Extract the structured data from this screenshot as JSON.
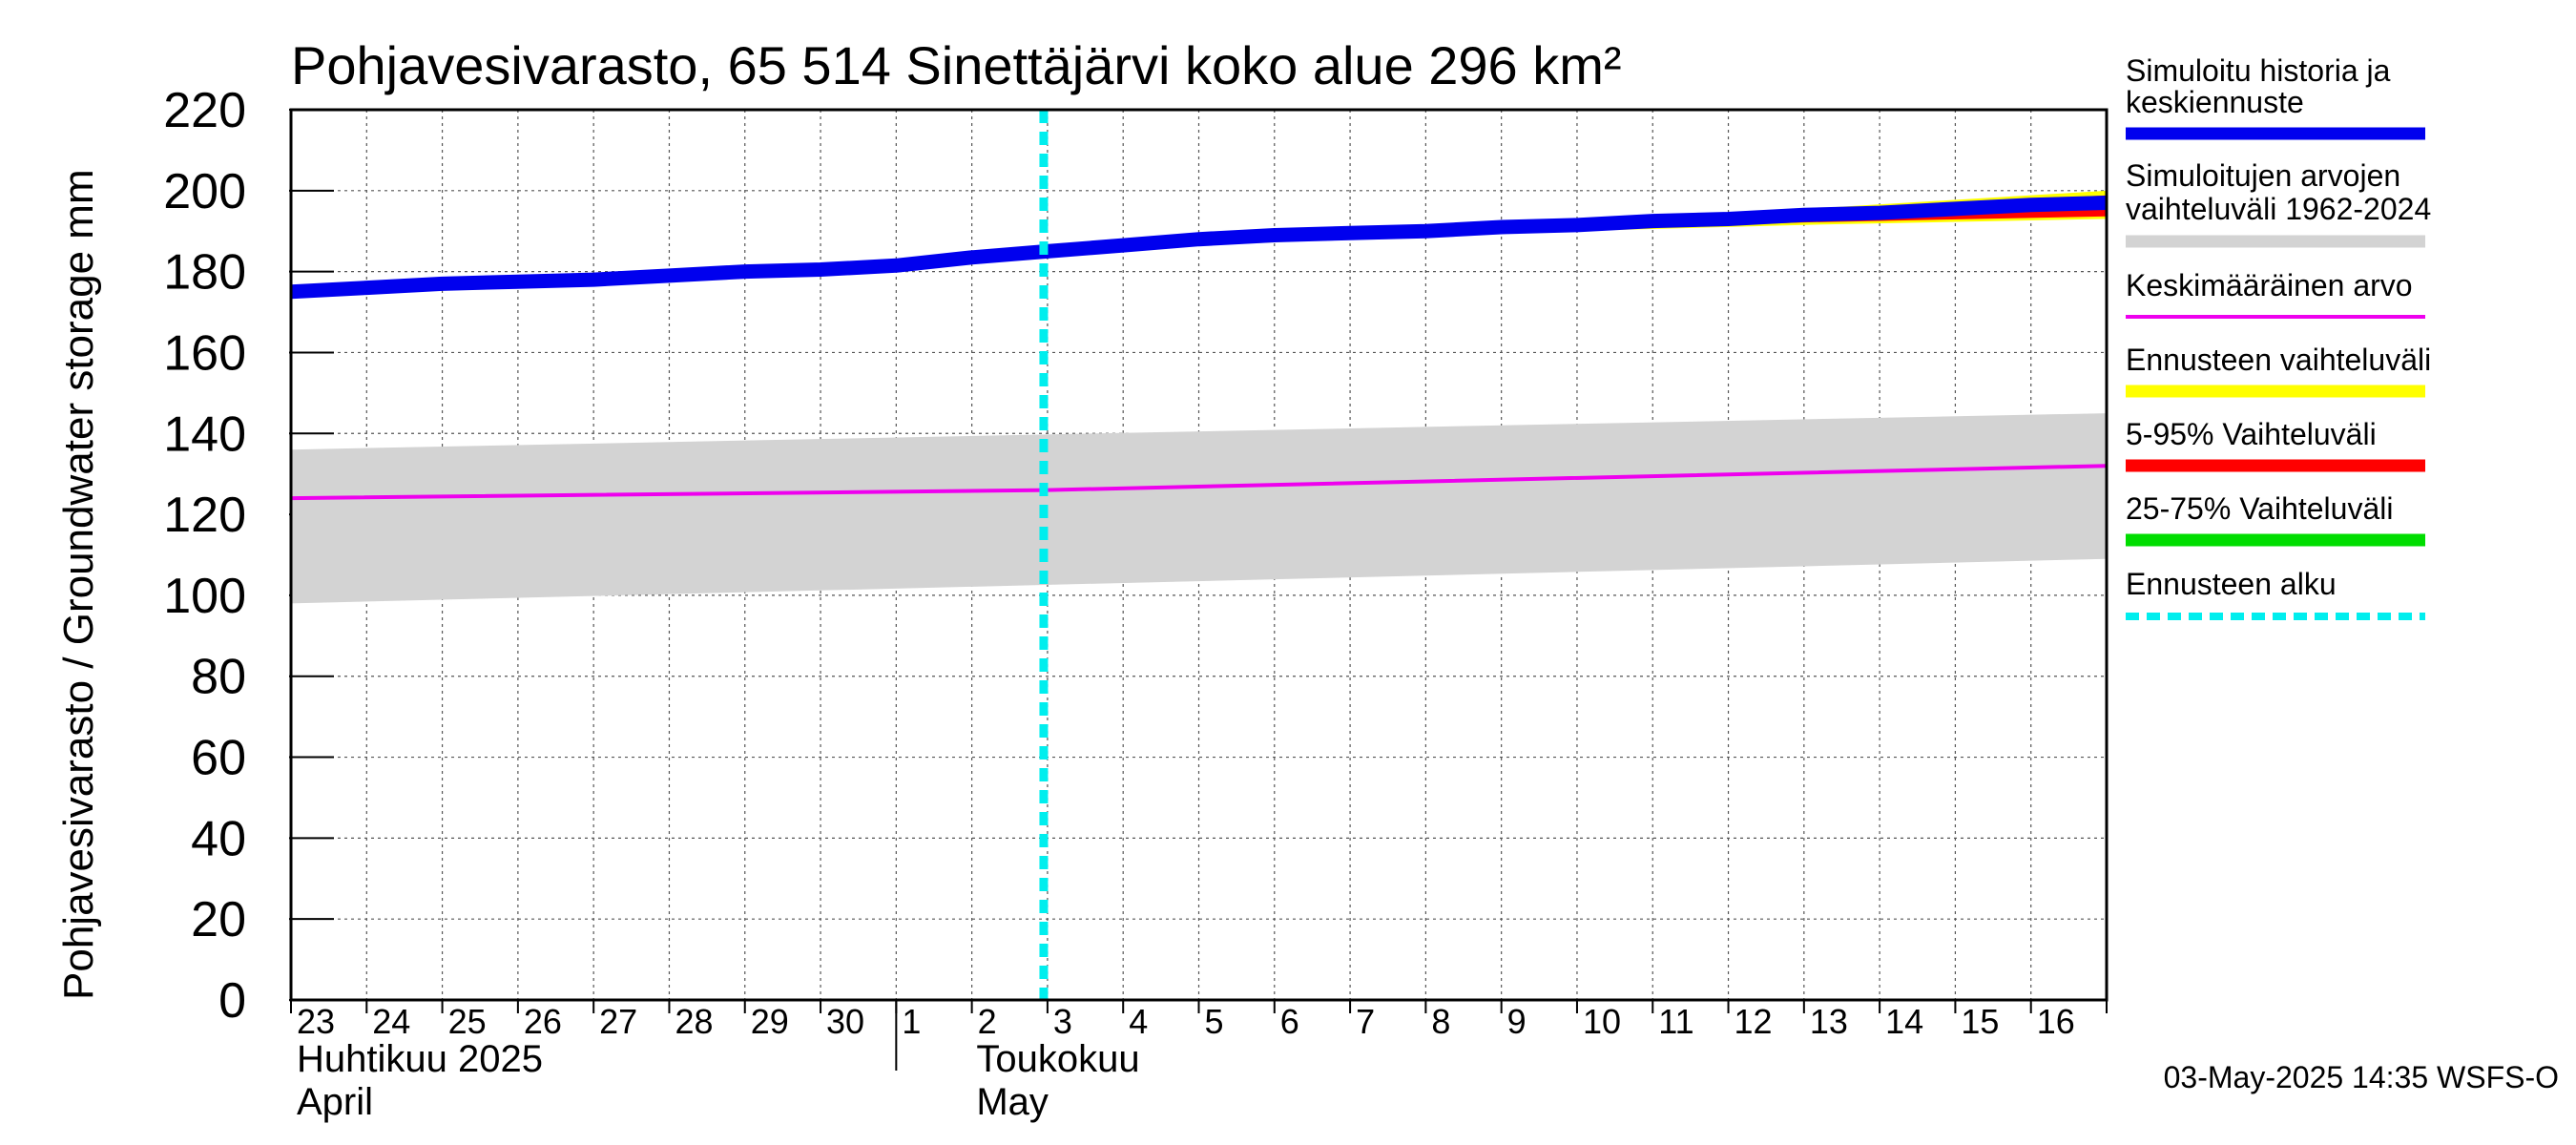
{
  "chart_data": {
    "type": "line",
    "title": "Pohjavesivarasto, 65 514 Sinettäjärvi koko alue 296 km²",
    "ylabel": "Pohjavesivarasto / Groundwater storage   mm",
    "ylim": [
      0,
      220
    ],
    "yticks": [
      0,
      20,
      40,
      60,
      80,
      100,
      120,
      140,
      160,
      180,
      200,
      220
    ],
    "x_start": "2025-04-23",
    "x_end": "2025-05-16",
    "day_labels": [
      "23",
      "24",
      "25",
      "26",
      "27",
      "28",
      "29",
      "30",
      "1",
      "2",
      "3",
      "4",
      "5",
      "6",
      "7",
      "8",
      "9",
      "10",
      "11",
      "12",
      "13",
      "14",
      "15",
      "16"
    ],
    "month_labels": [
      {
        "fi": "Huhtikuu  2025",
        "en": "April",
        "start_date": "2025-04-23"
      },
      {
        "fi": "Toukokuu",
        "en": "May",
        "start_date": "2025-05-01"
      }
    ],
    "forecast_start": "2025-05-03",
    "series": [
      {
        "name": "Simuloitu historia ja keskiennuste",
        "color": "#0000ee",
        "x": [
          "2025-04-23",
          "2025-04-24",
          "2025-04-25",
          "2025-04-26",
          "2025-04-27",
          "2025-04-28",
          "2025-04-29",
          "2025-04-30",
          "2025-05-01",
          "2025-05-02",
          "2025-05-03",
          "2025-05-04",
          "2025-05-05",
          "2025-05-06",
          "2025-05-07",
          "2025-05-08",
          "2025-05-09",
          "2025-05-10",
          "2025-05-11",
          "2025-05-12",
          "2025-05-13",
          "2025-05-14",
          "2025-05-15",
          "2025-05-16",
          "2025-05-17"
        ],
        "y": [
          175,
          176,
          177,
          177.5,
          178,
          179,
          180,
          180.5,
          181.5,
          183.5,
          185,
          186.5,
          188,
          189,
          189.5,
          190,
          191,
          191.5,
          192.5,
          193,
          194,
          194.5,
          195.5,
          196.5,
          197
        ]
      },
      {
        "name": "Simuloitujen arvojen vaihteluväli 1962-2024",
        "color": "#d3d3d3",
        "x": [
          "2025-04-23",
          "2025-05-17"
        ],
        "low": [
          98,
          109
        ],
        "high": [
          136,
          145
        ]
      },
      {
        "name": "Keskimääräinen arvo",
        "color": "#ee00ee",
        "x": [
          "2025-04-23",
          "2025-05-03",
          "2025-05-17"
        ],
        "y": [
          124,
          126,
          132
        ]
      },
      {
        "name": "Ennusteen vaihteluväli",
        "color": "#ffff00",
        "x": [
          "2025-05-03",
          "2025-05-08",
          "2025-05-13",
          "2025-05-17"
        ],
        "low": [
          185,
          189.5,
          192,
          193.5
        ],
        "high": [
          185,
          190.5,
          195,
          199.5
        ]
      },
      {
        "name": "5-95% Vaihteluväli",
        "color": "#ff0000",
        "x": [
          "2025-05-03",
          "2025-05-08",
          "2025-05-13",
          "2025-05-17"
        ],
        "low": [
          185,
          189.5,
          192.5,
          194
        ],
        "high": [
          185,
          190.5,
          194.5,
          198.5
        ]
      },
      {
        "name": "25-75% Vaihteluväli",
        "color": "#00dd00",
        "x": [
          "2025-05-03",
          "2025-05-08",
          "2025-05-13",
          "2025-05-17"
        ],
        "low": [
          185,
          190,
          193.5,
          196
        ],
        "high": [
          185,
          190,
          194.5,
          197.5
        ]
      },
      {
        "name": "Ennusteen alku",
        "color": "#00eeee",
        "style": "dashed"
      }
    ],
    "legend": [
      {
        "label": "Simuloitu historia ja\nkeskiennuste",
        "color": "#0000ee"
      },
      {
        "label": "Simuloitujen arvojen\nvaihteluväli 1962-2024",
        "color": "#d3d3d3"
      },
      {
        "label": "Keskimääräinen arvo",
        "color": "#ee00ee"
      },
      {
        "label": "Ennusteen vaihteluväli",
        "color": "#ffff00"
      },
      {
        "label": "5-95% Vaihteluväli",
        "color": "#ff0000"
      },
      {
        "label": "25-75% Vaihteluväli",
        "color": "#00dd00"
      },
      {
        "label": "Ennusteen alku",
        "color": "#00eeee"
      }
    ],
    "legend_position": "right",
    "grid": true,
    "footer": "03-May-2025 14:35 WSFS-O"
  }
}
